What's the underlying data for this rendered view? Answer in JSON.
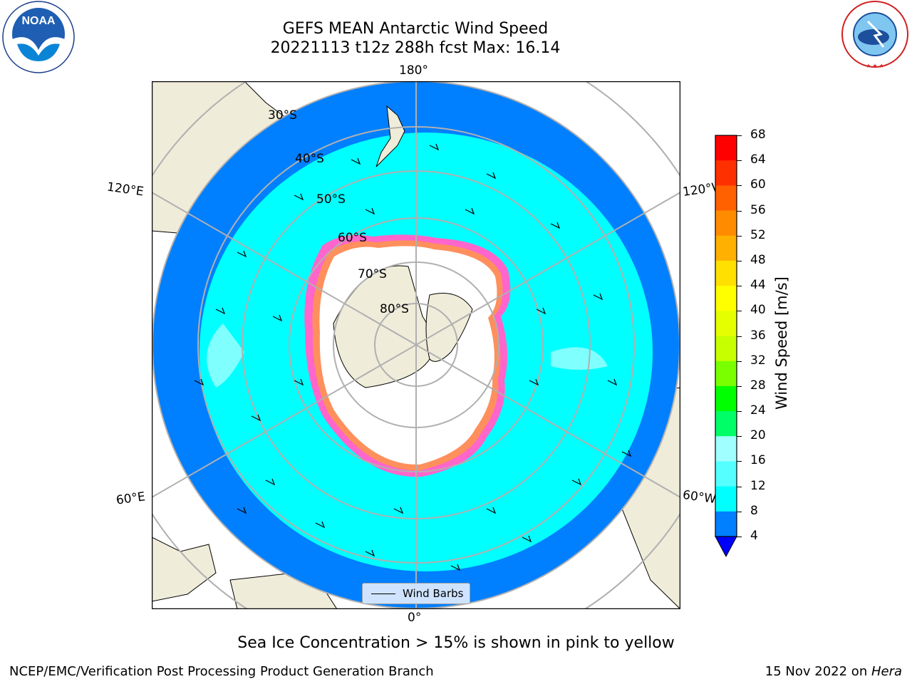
{
  "title": {
    "line1": "GEFS MEAN Antarctic Wind Speed",
    "line2": "20221113 t12z 288h fcst   Max: 16.14"
  },
  "longitude_labels": {
    "top": "180°",
    "bottom": "0°",
    "upper_left": "120°E",
    "upper_right": "120°W",
    "lower_left": "60°E",
    "lower_right": "60°W"
  },
  "latitude_labels": [
    "30°S",
    "40°S",
    "50°S",
    "60°S",
    "70°S",
    "80°S"
  ],
  "legend": {
    "label": "Wind Barbs"
  },
  "colorbar": {
    "label": "Wind Speed [m/s]",
    "ticks": [
      "68",
      "64",
      "60",
      "56",
      "52",
      "48",
      "44",
      "40",
      "36",
      "32",
      "28",
      "24",
      "20",
      "16",
      "12",
      "8",
      "4"
    ],
    "colors": [
      "#ff0000",
      "#ff3000",
      "#ff6000",
      "#ff8c00",
      "#ffb000",
      "#ffe000",
      "#ffff00",
      "#e6ff00",
      "#c8ff00",
      "#7aff00",
      "#00ff00",
      "#00ff66",
      "#a0ffff",
      "#55ffff",
      "#00ffff",
      "#007fff"
    ],
    "extend_color": "#0000ff"
  },
  "caption": "Sea Ice Concentration > 15% is shown in pink to yellow",
  "footer": {
    "left": "NCEP/EMC/Verification Post Processing Product Generation Branch",
    "right_date": "15 Nov 2022 on ",
    "right_host": "Hera"
  },
  "logos": {
    "left": "NOAA",
    "right": "NATIONAL WEATHER SERVICE"
  },
  "map_colors": {
    "land": "#efecda",
    "sea_ice": "#ff66cc",
    "ocean_low": "#007fff",
    "ocean_mid": "#00ffff",
    "ocean_hi": "#a0ffff"
  }
}
